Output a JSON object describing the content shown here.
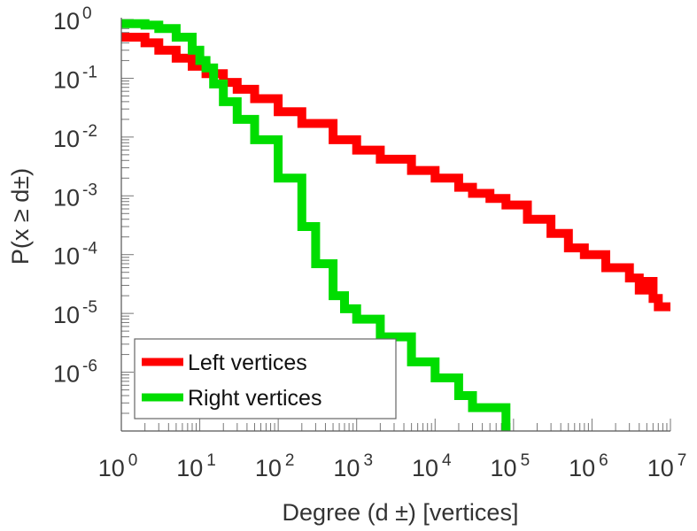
{
  "chart_data": {
    "type": "line",
    "xscale": "log",
    "yscale": "log",
    "xlabel": "Degree (d  ±) [vertices]",
    "ylabel": "P(x ≥ d±)",
    "xlim": [
      1,
      10000000
    ],
    "ylim": [
      1e-07,
      1
    ],
    "x_ticks": [
      {
        "base": "10",
        "exp": "0"
      },
      {
        "base": "10",
        "exp": "1"
      },
      {
        "base": "10",
        "exp": "2"
      },
      {
        "base": "10",
        "exp": "3"
      },
      {
        "base": "10",
        "exp": "4"
      },
      {
        "base": "10",
        "exp": "5"
      },
      {
        "base": "10",
        "exp": "6"
      },
      {
        "base": "10",
        "exp": "7"
      }
    ],
    "y_ticks": [
      {
        "base": "10",
        "exp": "0"
      },
      {
        "base": "10",
        "exp": "-1"
      },
      {
        "base": "10",
        "exp": "-2"
      },
      {
        "base": "10",
        "exp": "-3"
      },
      {
        "base": "10",
        "exp": "-4"
      },
      {
        "base": "10",
        "exp": "-5"
      },
      {
        "base": "10",
        "exp": "-6"
      }
    ],
    "grid": false,
    "legend_position": "bottom-left",
    "series": [
      {
        "name": "Left vertices",
        "color": "#ff0000",
        "x": [
          1,
          2,
          3,
          5,
          8,
          12,
          20,
          30,
          50,
          100,
          200,
          500,
          1000,
          2000,
          5000,
          10000,
          20000,
          30000,
          50000,
          80000,
          150000,
          300000,
          500000,
          800000,
          1500000,
          3000000,
          4000000,
          5000000,
          6000000,
          7000000,
          10000000
        ],
        "y": [
          0.5,
          0.4,
          0.3,
          0.22,
          0.16,
          0.12,
          0.085,
          0.065,
          0.045,
          0.027,
          0.017,
          0.009,
          0.006,
          0.0042,
          0.0027,
          0.002,
          0.0014,
          0.0011,
          0.0009,
          0.0007,
          0.0004,
          0.00023,
          0.00013,
          0.0001,
          6e-05,
          4e-05,
          2.5e-05,
          3.5e-05,
          1.8e-05,
          1.3e-05,
          1.3e-05
        ]
      },
      {
        "name": "Right vertices",
        "color": "#00dd00",
        "x": [
          1,
          2,
          3,
          5,
          8,
          10,
          12,
          15,
          20,
          30,
          50,
          100,
          200,
          300,
          500,
          700,
          1000,
          2000,
          5000,
          10000,
          20000,
          30000,
          50000,
          80000
        ],
        "y": [
          0.85,
          0.8,
          0.7,
          0.5,
          0.3,
          0.2,
          0.15,
          0.08,
          0.04,
          0.02,
          0.009,
          0.002,
          0.0003,
          7e-05,
          2e-05,
          1.2e-05,
          8e-06,
          4e-06,
          1.5e-06,
          8e-07,
          4e-07,
          2.5e-07,
          2.5e-07,
          1e-07
        ]
      }
    ]
  }
}
